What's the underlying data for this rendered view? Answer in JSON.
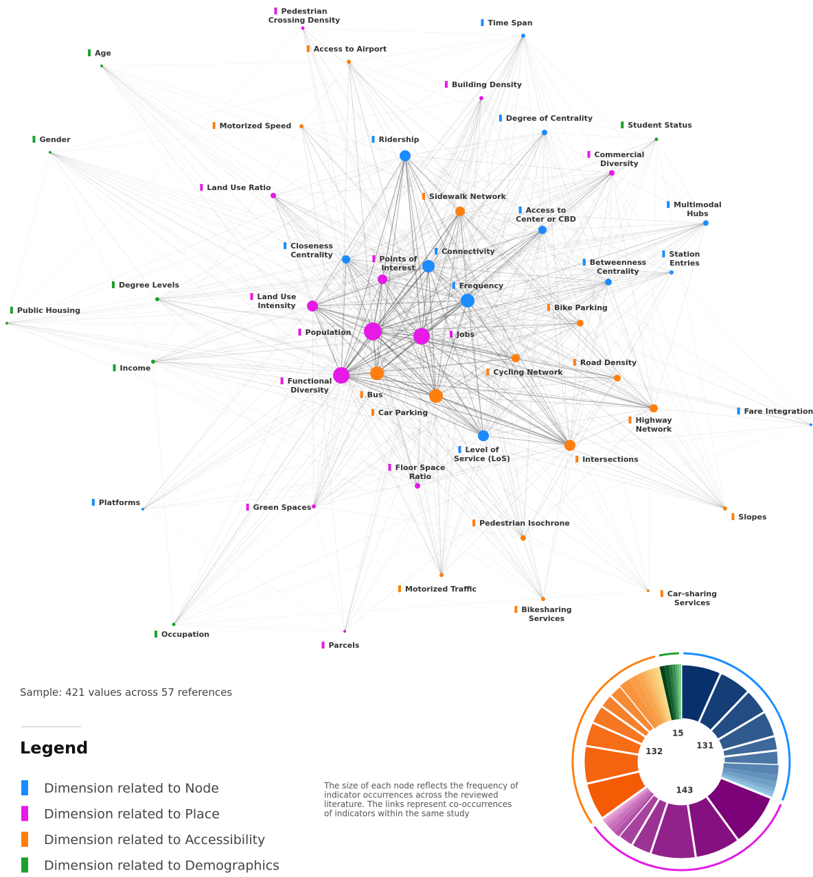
{
  "groups": [
    {
      "name": "Dimension related to Node",
      "color": "#1a8cff"
    },
    {
      "name": "Dimension related to Place",
      "color": "#e619e6"
    },
    {
      "name": "Dimension related to Accessibility",
      "color": "#ff7f0e"
    },
    {
      "name": "Dimension related to Demographics",
      "color": "#1ca02c"
    }
  ],
  "nodes": [
    {
      "label": [
        "Pedestrian",
        "Crossing Density"
      ],
      "group": 1
    },
    {
      "label": [
        "Time Span"
      ],
      "group": 0
    },
    {
      "label": [
        "Age"
      ],
      "group": 3
    },
    {
      "label": [
        "Access to Airport"
      ],
      "group": 2
    },
    {
      "label": [
        "Building Density"
      ],
      "group": 1
    },
    {
      "label": [
        "Gender"
      ],
      "group": 3
    },
    {
      "label": [
        "Motorized Speed"
      ],
      "group": 2
    },
    {
      "label": [
        "Degree of Centrality"
      ],
      "group": 0
    },
    {
      "label": [
        "Student Status"
      ],
      "group": 3
    },
    {
      "label": [
        "Ridership"
      ],
      "group": 0
    },
    {
      "label": [
        "Commercial",
        "Diversity"
      ],
      "group": 1
    },
    {
      "label": [
        "Land Use Ratio"
      ],
      "group": 1
    },
    {
      "label": [
        "Sidewalk Network"
      ],
      "group": 2
    },
    {
      "label": [
        "Multimodal",
        "Hubs"
      ],
      "group": 0
    },
    {
      "label": [
        "Access to",
        "Center or CBD"
      ],
      "group": 0
    },
    {
      "label": [
        "Closeness",
        "Centrality"
      ],
      "group": 0
    },
    {
      "label": [
        "Points of",
        "Interest"
      ],
      "group": 1
    },
    {
      "label": [
        "Connectivity"
      ],
      "group": 0
    },
    {
      "label": [
        "Betweenness",
        "Centrality"
      ],
      "group": 0
    },
    {
      "label": [
        "Station",
        "Entries"
      ],
      "group": 0
    },
    {
      "label": [
        "Degree Levels"
      ],
      "group": 3
    },
    {
      "label": [
        "Land Use",
        "Intensity"
      ],
      "group": 1
    },
    {
      "label": [
        "Frequency"
      ],
      "group": 0
    },
    {
      "label": [
        "Public Housing"
      ],
      "group": 3
    },
    {
      "label": [
        "Bike Parking"
      ],
      "group": 2
    },
    {
      "label": [
        "Population"
      ],
      "group": 1
    },
    {
      "label": [
        "Jobs"
      ],
      "group": 1
    },
    {
      "label": [
        "Income"
      ],
      "group": 3
    },
    {
      "label": [
        "Cycling Network"
      ],
      "group": 2
    },
    {
      "label": [
        "Road Density"
      ],
      "group": 2
    },
    {
      "label": [
        "Functional",
        "Diversity"
      ],
      "group": 1
    },
    {
      "label": [
        "Bus"
      ],
      "group": 2
    },
    {
      "label": [
        "Car Parking"
      ],
      "group": 2
    },
    {
      "label": [
        "Highway",
        "Network"
      ],
      "group": 2
    },
    {
      "label": [
        "Fare Integration"
      ],
      "group": 0
    },
    {
      "label": [
        "Level of",
        "Service (LoS)"
      ],
      "group": 0
    },
    {
      "label": [
        "Intersections"
      ],
      "group": 2
    },
    {
      "label": [
        "Floor Space",
        "Ratio"
      ],
      "group": 1
    },
    {
      "label": [
        "Platforms"
      ],
      "group": 0
    },
    {
      "label": [
        "Green Spaces"
      ],
      "group": 1
    },
    {
      "label": [
        "Slopes"
      ],
      "group": 2
    },
    {
      "label": [
        "Pedestrian Isochrone"
      ],
      "group": 2
    },
    {
      "label": [
        "Motorized Traffic"
      ],
      "group": 2
    },
    {
      "label": [
        "Car-sharing",
        "Services"
      ],
      "group": 2
    },
    {
      "label": [
        "Bikesharing",
        "Services"
      ],
      "group": 2
    },
    {
      "label": [
        "Occupation"
      ],
      "group": 3
    },
    {
      "label": [
        "Parcels"
      ],
      "group": 1
    }
  ],
  "sample": "Sample: 421 values across 57 references",
  "legend_title": "Legend",
  "note": [
    "The size of each node reflects the frequency of",
    "indicator occurrences across the reviewed",
    "literature. The links represent co-occurrences",
    "of indicators within the same study"
  ],
  "donut": [
    {
      "group": 0,
      "value": 131
    },
    {
      "group": 1,
      "value": 143
    },
    {
      "group": 2,
      "value": 132
    },
    {
      "group": 3,
      "value": 15
    }
  ]
}
